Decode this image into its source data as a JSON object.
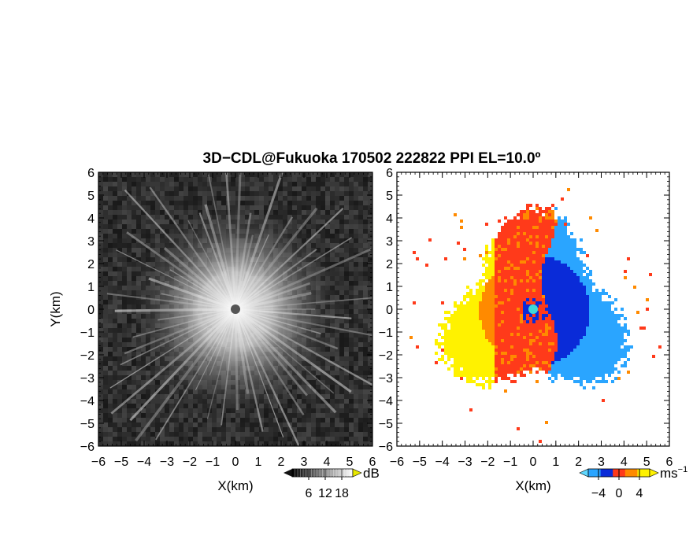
{
  "title": "3D−CDL@Fukuoka 170502 222822 PPI EL=10.0º",
  "chart_data": [
    {
      "type": "heatmap",
      "panel": "left",
      "xlabel": "X(km)",
      "ylabel": "Y(km)",
      "xlim": [
        -6,
        6
      ],
      "ylim": [
        -6,
        6
      ],
      "xticks": [
        "−6",
        "−5",
        "−4",
        "−3",
        "−2",
        "−1",
        "0",
        "1",
        "2",
        "3",
        "4",
        "5",
        "6"
      ],
      "yticks": [
        "6",
        "5",
        "4",
        "3",
        "2",
        "1",
        "0",
        "−1",
        "−2",
        "−3",
        "−4",
        "−5",
        "−6"
      ],
      "field": "signal-to-noise ratio",
      "colormap": "grayscale",
      "center": [
        0,
        0
      ],
      "colorbar": {
        "ticks": [
          "6",
          "12",
          "18"
        ],
        "unit": "dB",
        "range": [
          0,
          22
        ]
      },
      "colors": {
        "background": "#262626",
        "bright": "#f2f2f2"
      }
    },
    {
      "type": "heatmap",
      "panel": "right",
      "xlabel": "X(km)",
      "xlim": [
        -6,
        6
      ],
      "ylim": [
        -6,
        6
      ],
      "xticks": [
        "−6",
        "−5",
        "−4",
        "−3",
        "−2",
        "−1",
        "0",
        "1",
        "2",
        "3",
        "4",
        "5",
        "6"
      ],
      "yticks": [
        "6",
        "5",
        "4",
        "3",
        "2",
        "1",
        "0",
        "−1",
        "−2",
        "−3",
        "−4",
        "−5",
        "−6"
      ],
      "field": "Doppler velocity",
      "colormap": "diverging blue-red-yellow",
      "center": [
        0,
        0
      ],
      "colorbar": {
        "ticks": [
          "−4",
          "0",
          "4"
        ],
        "unit": "ms",
        "unit_sup": "−1",
        "range": [
          -6,
          6
        ]
      },
      "colors": {
        "negative_far": "#0a2bd8",
        "negative_near": "#2aa5ff",
        "zero": "#ff3a1a",
        "positive_near": "#ff8a00",
        "positive_far": "#fff200",
        "center": "#3fd8d8"
      }
    }
  ]
}
